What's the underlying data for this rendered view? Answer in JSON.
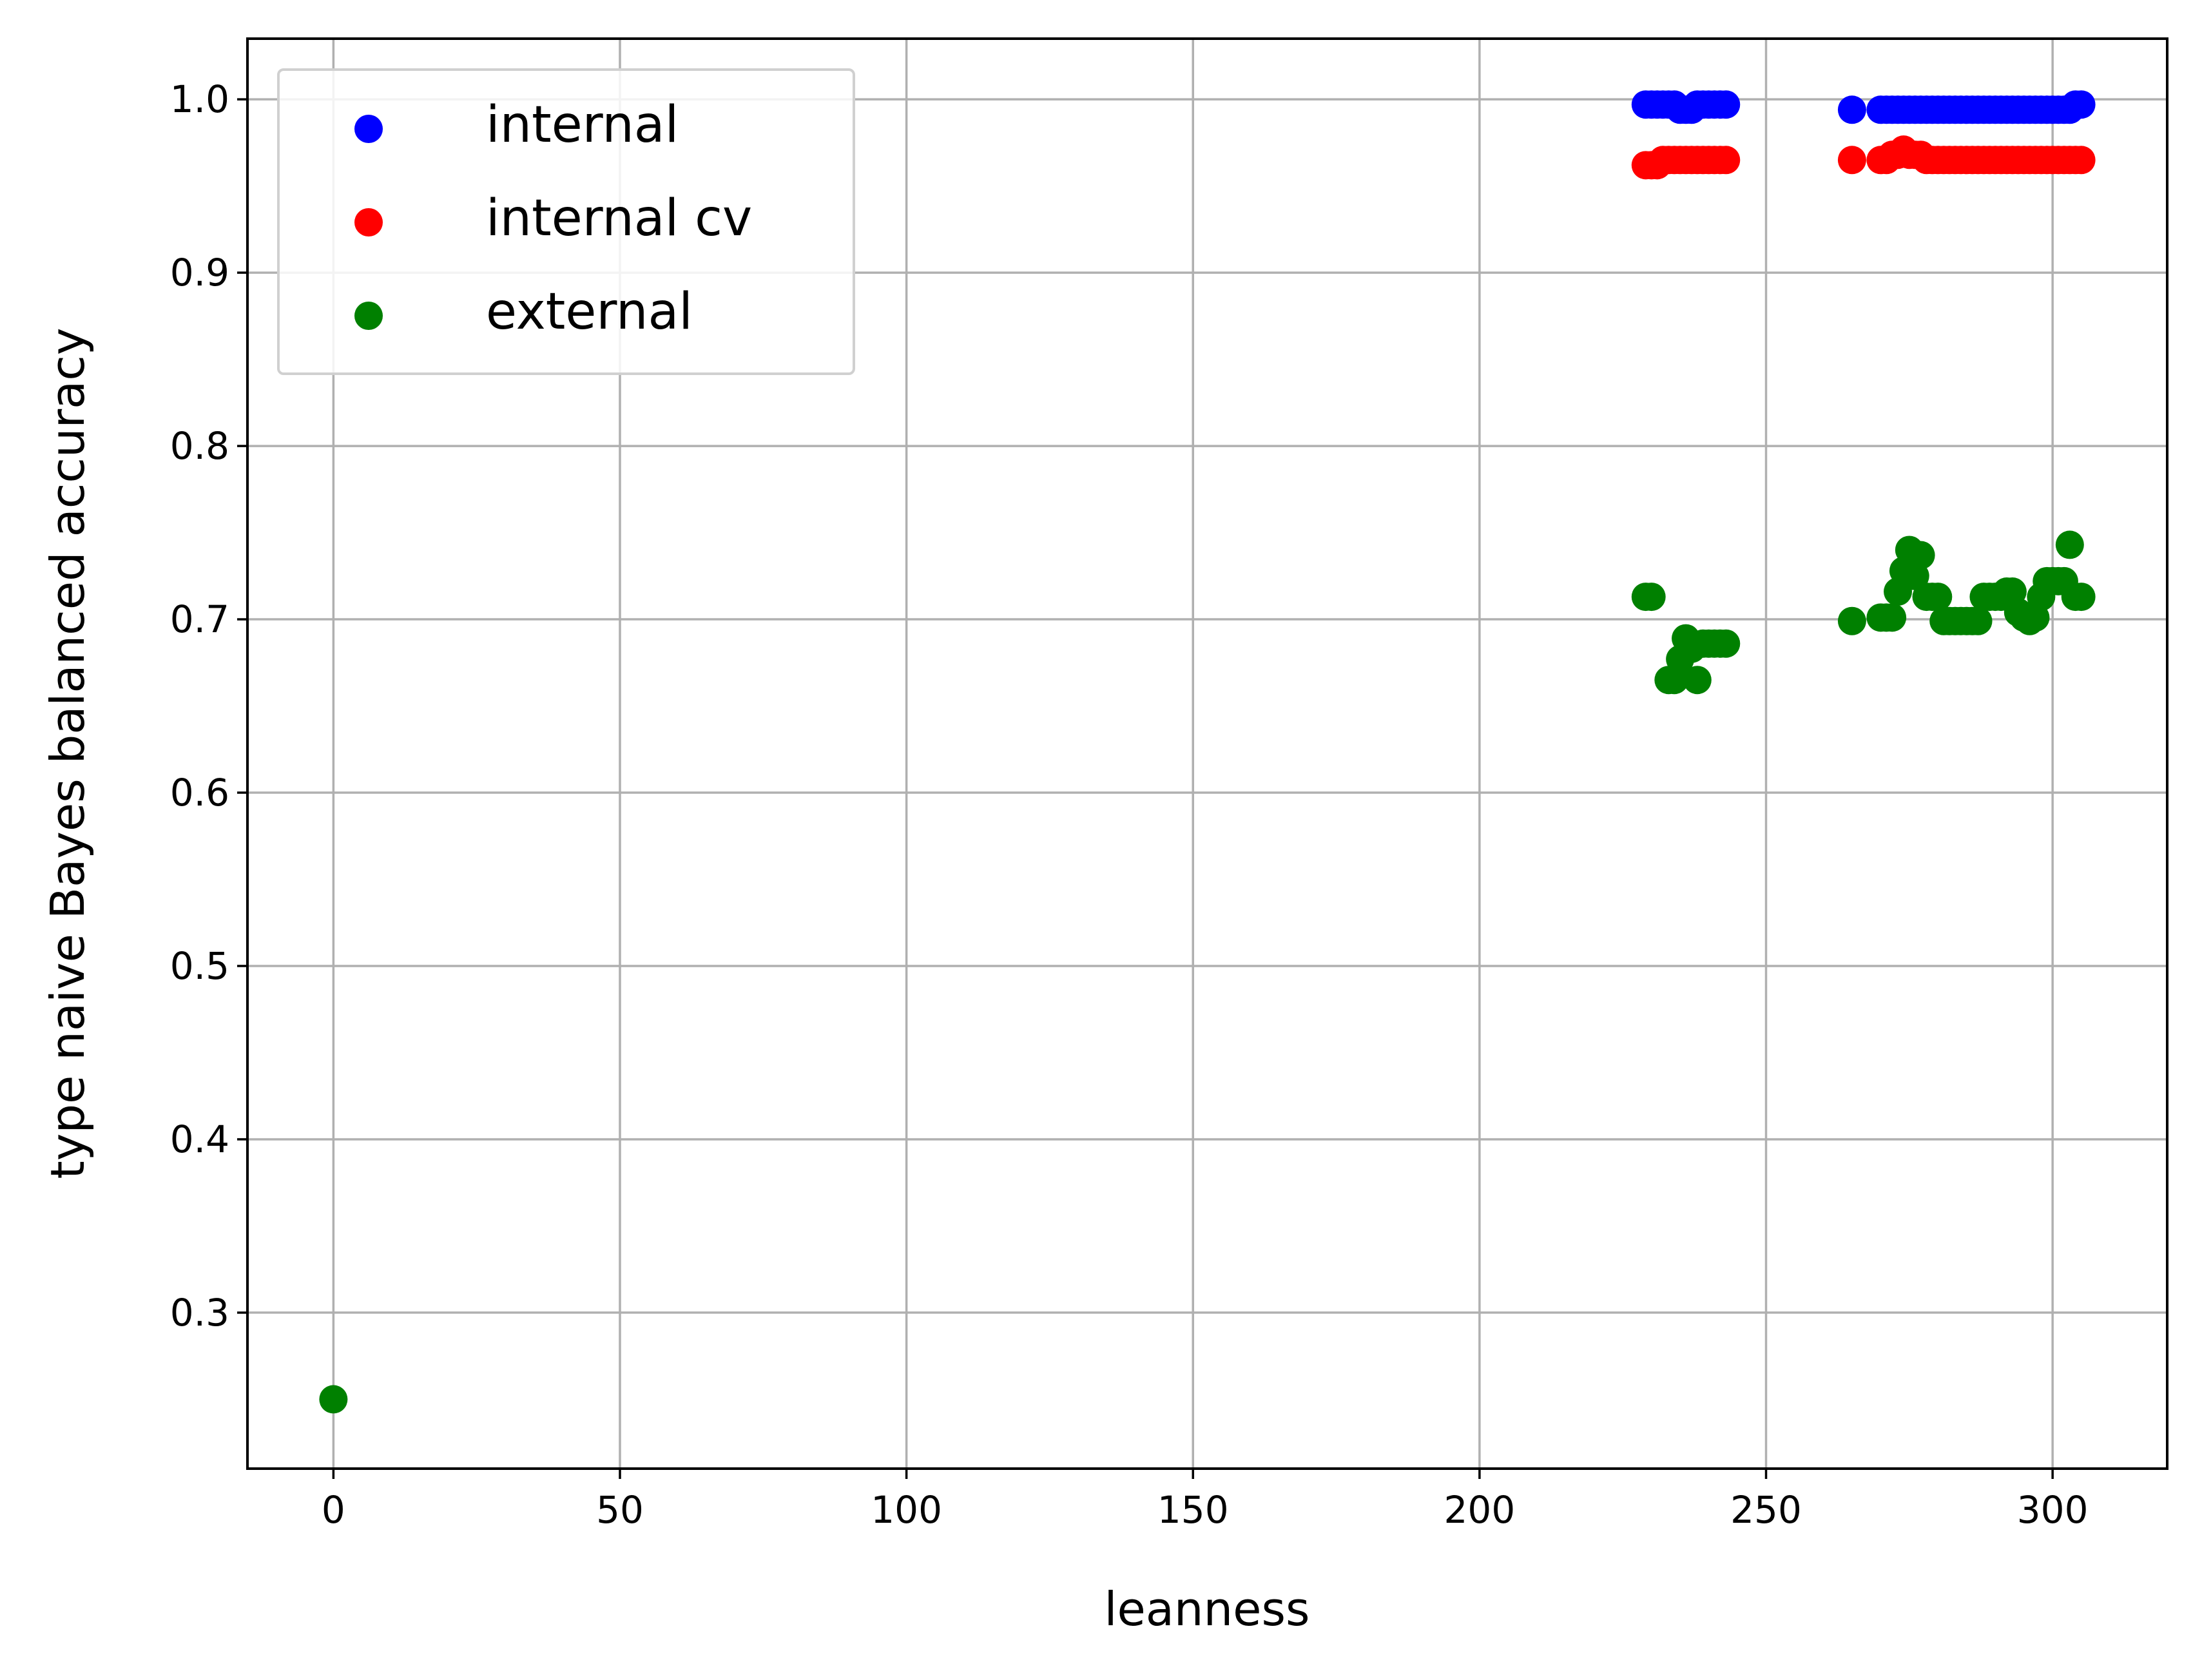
{
  "chart_data": {
    "type": "scatter",
    "title": "",
    "xlabel": "leanness",
    "ylabel": "type naive Bayes balanced accuracy",
    "xlim": [
      -15,
      320
    ],
    "ylim": [
      0.21,
      1.035
    ],
    "xticks": [
      0,
      50,
      100,
      150,
      200,
      250,
      300
    ],
    "xtick_labels": [
      "0",
      "50",
      "100",
      "150",
      "200",
      "250",
      "300"
    ],
    "yticks": [
      0.3,
      0.4,
      0.5,
      0.6,
      0.7,
      0.8,
      0.9,
      1.0
    ],
    "ytick_labels": [
      "0.3",
      "0.4",
      "0.5",
      "0.6",
      "0.7",
      "0.8",
      "0.9",
      "1.0"
    ],
    "grid": true,
    "legend_position": "top-left",
    "series": [
      {
        "name": "internal",
        "color": "#0000ff",
        "x": [
          229,
          230,
          231,
          232,
          233,
          234,
          235,
          236,
          237,
          238,
          239,
          240,
          241,
          242,
          243,
          265,
          270,
          271,
          272,
          273,
          274,
          275,
          276,
          277,
          278,
          279,
          280,
          281,
          282,
          283,
          284,
          285,
          286,
          287,
          288,
          289,
          290,
          291,
          292,
          293,
          294,
          295,
          296,
          297,
          298,
          299,
          300,
          301,
          302,
          303,
          304,
          305
        ],
        "y": [
          0.997,
          0.997,
          0.997,
          0.997,
          0.997,
          0.997,
          0.994,
          0.994,
          0.994,
          0.997,
          0.997,
          0.997,
          0.997,
          0.997,
          0.997,
          0.994,
          0.994,
          0.994,
          0.994,
          0.994,
          0.994,
          0.994,
          0.994,
          0.994,
          0.994,
          0.994,
          0.994,
          0.994,
          0.994,
          0.994,
          0.994,
          0.994,
          0.994,
          0.994,
          0.994,
          0.994,
          0.994,
          0.994,
          0.994,
          0.994,
          0.994,
          0.994,
          0.994,
          0.994,
          0.994,
          0.994,
          0.994,
          0.994,
          0.994,
          0.994,
          0.997,
          0.997
        ]
      },
      {
        "name": "internal cv",
        "color": "#ff0000",
        "x": [
          229,
          230,
          231,
          232,
          233,
          234,
          235,
          236,
          237,
          238,
          239,
          240,
          241,
          242,
          243,
          265,
          270,
          271,
          272,
          273,
          274,
          275,
          276,
          277,
          278,
          279,
          280,
          281,
          282,
          283,
          284,
          285,
          286,
          287,
          288,
          289,
          290,
          291,
          292,
          293,
          294,
          295,
          296,
          297,
          298,
          299,
          300,
          301,
          302,
          303,
          304,
          305
        ],
        "y": [
          0.962,
          0.962,
          0.962,
          0.965,
          0.965,
          0.965,
          0.965,
          0.965,
          0.965,
          0.965,
          0.965,
          0.965,
          0.965,
          0.965,
          0.965,
          0.965,
          0.965,
          0.965,
          0.968,
          0.968,
          0.971,
          0.968,
          0.968,
          0.968,
          0.965,
          0.965,
          0.965,
          0.965,
          0.965,
          0.965,
          0.965,
          0.965,
          0.965,
          0.965,
          0.965,
          0.965,
          0.965,
          0.965,
          0.965,
          0.965,
          0.965,
          0.965,
          0.965,
          0.965,
          0.965,
          0.965,
          0.965,
          0.965,
          0.965,
          0.965,
          0.965,
          0.965
        ]
      },
      {
        "name": "external",
        "color": "#008000",
        "x": [
          0,
          229,
          230,
          233,
          234,
          235,
          236,
          237,
          238,
          239,
          240,
          241,
          242,
          243,
          265,
          270,
          271,
          272,
          273,
          274,
          275,
          276,
          277,
          278,
          279,
          280,
          281,
          282,
          283,
          284,
          285,
          286,
          287,
          288,
          289,
          290,
          291,
          292,
          293,
          294,
          295,
          296,
          297,
          298,
          299,
          300,
          301,
          302,
          303,
          304,
          305
        ],
        "y": [
          0.25,
          0.713,
          0.713,
          0.665,
          0.665,
          0.677,
          0.689,
          0.683,
          0.665,
          0.686,
          0.686,
          0.686,
          0.686,
          0.686,
          0.699,
          0.701,
          0.701,
          0.701,
          0.716,
          0.728,
          0.74,
          0.725,
          0.737,
          0.713,
          0.713,
          0.713,
          0.699,
          0.699,
          0.699,
          0.699,
          0.699,
          0.699,
          0.699,
          0.713,
          0.713,
          0.713,
          0.713,
          0.716,
          0.716,
          0.704,
          0.701,
          0.699,
          0.701,
          0.713,
          0.722,
          0.722,
          0.722,
          0.722,
          0.743,
          0.713,
          0.713
        ]
      }
    ]
  }
}
